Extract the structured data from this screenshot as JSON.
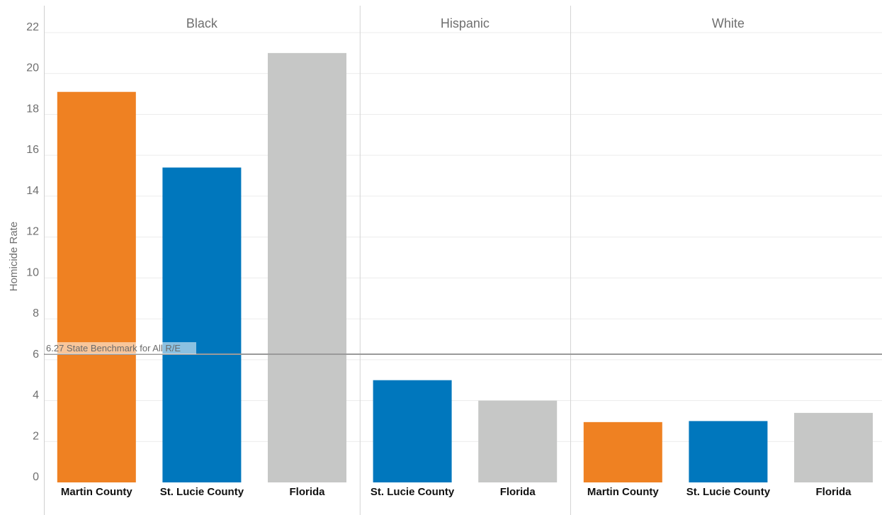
{
  "chart_data": {
    "type": "bar",
    "ylabel": "Homicide Rate",
    "ylim": [
      0,
      22
    ],
    "yticks": [
      0,
      2,
      4,
      6,
      8,
      10,
      12,
      14,
      16,
      18,
      20,
      22
    ],
    "grid": true,
    "colors": {
      "Martin County": "#ef8122",
      "St. Lucie County": "#0077bd",
      "Florida": "#c6c7c6"
    },
    "panels": [
      {
        "title": "Black",
        "bars": [
          {
            "category": "Martin County",
            "value": 19.1
          },
          {
            "category": "St. Lucie County",
            "value": 15.4
          },
          {
            "category": "Florida",
            "value": 21.0
          }
        ]
      },
      {
        "title": "Hispanic",
        "bars": [
          {
            "category": "St. Lucie County",
            "value": 5.0
          },
          {
            "category": "Florida",
            "value": 4.0
          }
        ]
      },
      {
        "title": "White",
        "bars": [
          {
            "category": "Martin County",
            "value": 2.95
          },
          {
            "category": "St. Lucie County",
            "value": 3.0
          },
          {
            "category": "Florida",
            "value": 3.4
          }
        ]
      }
    ],
    "reference_line": {
      "value": 6.27,
      "label": "6.27 State Benchmark for All R/E",
      "color": "#9a9a9a"
    }
  }
}
